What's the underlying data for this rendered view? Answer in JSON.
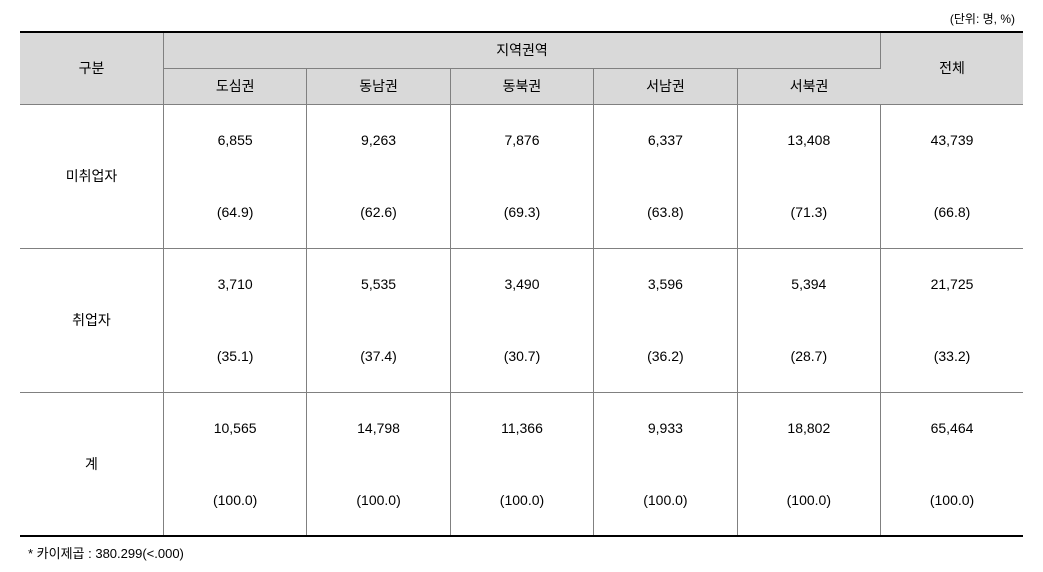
{
  "unit_label": "(단위: 명, %)",
  "table": {
    "header": {
      "category_label": "구분",
      "region_group_label": "지역권역",
      "total_label": "전체",
      "regions": [
        "도심권",
        "동남권",
        "동북권",
        "서남권",
        "서북권"
      ]
    },
    "rows": [
      {
        "label": "미취업자",
        "values": [
          "6,855",
          "9,263",
          "7,876",
          "6,337",
          "13,408",
          "43,739"
        ],
        "percents": [
          "(64.9)",
          "(62.6)",
          "(69.3)",
          "(63.8)",
          "(71.3)",
          "(66.8)"
        ]
      },
      {
        "label": "취업자",
        "values": [
          "3,710",
          "5,535",
          "3,490",
          "3,596",
          "5,394",
          "21,725"
        ],
        "percents": [
          "(35.1)",
          "(37.4)",
          "(30.7)",
          "(36.2)",
          "(28.7)",
          "(33.2)"
        ]
      },
      {
        "label": "계",
        "values": [
          "10,565",
          "14,798",
          "11,366",
          "9,933",
          "18,802",
          "65,464"
        ],
        "percents": [
          "(100.0)",
          "(100.0)",
          "(100.0)",
          "(100.0)",
          "(100.0)",
          "(100.0)"
        ]
      }
    ]
  },
  "footnote": "* 카이제곱 : 380.299(<.000)",
  "styling": {
    "header_bg": "#d9d9d9",
    "border_thick": "#000000",
    "border_thin": "#808080",
    "text_color": "#000000",
    "body_bg": "#ffffff",
    "body_font_size": 14,
    "unit_font_size": 12,
    "footnote_font_size": 13,
    "cell_height_header": 36,
    "cell_height_data": 72
  }
}
